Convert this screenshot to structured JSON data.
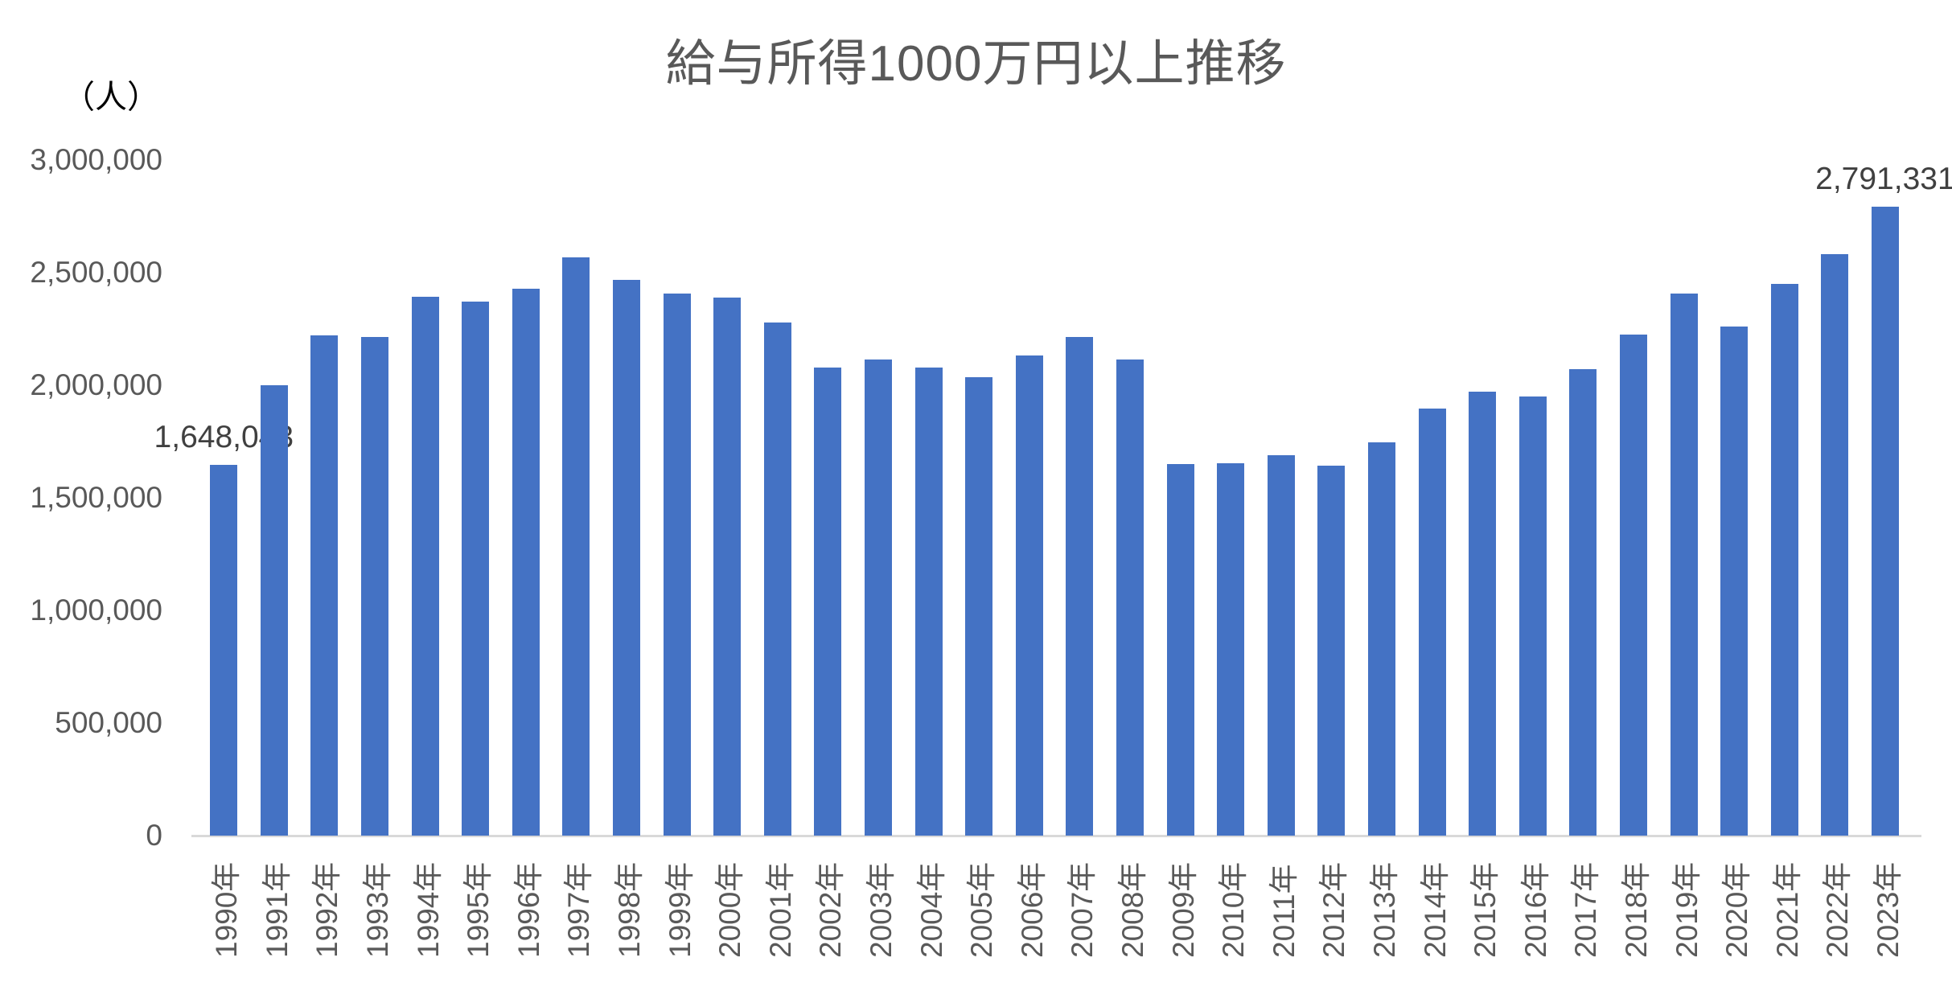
{
  "chart_data": {
    "type": "bar",
    "title": "給与所得1000万円以上推移",
    "y_axis_unit": "（人）",
    "categories": [
      "1990年",
      "1991年",
      "1992年",
      "1993年",
      "1994年",
      "1995年",
      "1996年",
      "1997年",
      "1998年",
      "1999年",
      "2000年",
      "2001年",
      "2002年",
      "2003年",
      "2004年",
      "2005年",
      "2006年",
      "2007年",
      "2008年",
      "2009年",
      "2010年",
      "2011年",
      "2012年",
      "2013年",
      "2014年",
      "2015年",
      "2016年",
      "2017年",
      "2018年",
      "2019年",
      "2020年",
      "2021年",
      "2022年",
      "2023年"
    ],
    "values": [
      1648043,
      2001000,
      2221000,
      2215000,
      2394000,
      2370000,
      2427000,
      2568000,
      2468000,
      2406000,
      2390000,
      2280000,
      2077000,
      2114000,
      2080000,
      2036000,
      2131000,
      2215000,
      2113000,
      1651000,
      1653000,
      1688000,
      1643000,
      1747000,
      1895000,
      1973000,
      1950000,
      2071000,
      2224000,
      2407000,
      2259000,
      2449000,
      2582000,
      2791331
    ],
    "ylim": [
      0,
      3000000
    ],
    "yticks": [
      {
        "value": 0,
        "label": "0"
      },
      {
        "value": 500000,
        "label": "500,000"
      },
      {
        "value": 1000000,
        "label": "1,000,000"
      },
      {
        "value": 1500000,
        "label": "1,500,000"
      },
      {
        "value": 2000000,
        "label": "2,000,000"
      },
      {
        "value": 2500000,
        "label": "2,500,000"
      },
      {
        "value": 3000000,
        "label": "3,000,000"
      }
    ],
    "data_labels": [
      {
        "category": "1990年",
        "text": "1,648,043"
      },
      {
        "category": "2023年",
        "text": "2,791,331"
      }
    ],
    "grid": false,
    "legend": "none",
    "bar_orientation": "vertical",
    "x_label_rotation": -90,
    "colors": {
      "bar": "#4472C4",
      "title_text": "#595959",
      "axis_text": "#595959",
      "data_label_text": "#404040",
      "unit_text": "#000000",
      "axis_line": "#D9D9D9"
    }
  }
}
